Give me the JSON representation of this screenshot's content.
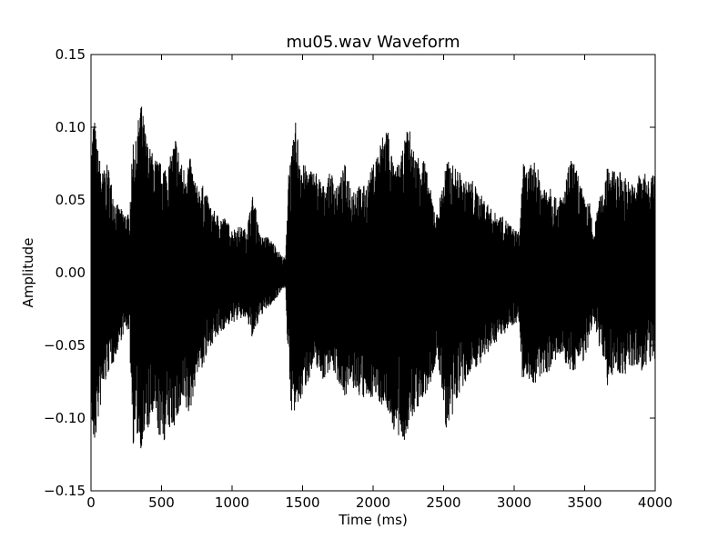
{
  "chart_data": {
    "type": "line",
    "title": "mu05.wav Waveform",
    "xlabel": "Time (ms)",
    "ylabel": "Amplitude",
    "xlim": [
      0,
      4000
    ],
    "ylim": [
      -0.15,
      0.15
    ],
    "xticks": [
      0,
      500,
      1000,
      1500,
      2000,
      2500,
      3000,
      3500,
      4000
    ],
    "xtick_labels": [
      "0",
      "500",
      "1000",
      "1500",
      "2000",
      "2500",
      "3000",
      "3500",
      "4000"
    ],
    "yticks": [
      0.15,
      0.1,
      0.05,
      0.0,
      -0.05,
      -0.1,
      -0.15
    ],
    "ytick_labels": [
      "0.15",
      "0.10",
      "0.05",
      "0.00",
      "−0.05",
      "−0.10",
      "−0.15"
    ],
    "grid": false,
    "line_color": "#000000",
    "series": [
      {
        "kind": "waveform_envelope",
        "x": [
          0,
          20,
          40,
          80,
          120,
          170,
          200,
          240,
          270,
          300,
          320,
          350,
          400,
          450,
          500,
          550,
          600,
          650,
          700,
          750,
          800,
          850,
          900,
          950,
          1000,
          1050,
          1100,
          1150,
          1200,
          1250,
          1300,
          1350,
          1380,
          1400,
          1420,
          1450,
          1500,
          1550,
          1600,
          1650,
          1700,
          1750,
          1800,
          1850,
          1900,
          1950,
          2000,
          2050,
          2100,
          2150,
          2200,
          2250,
          2300,
          2350,
          2400,
          2450,
          2480,
          2520,
          2550,
          2600,
          2650,
          2700,
          2750,
          2800,
          2850,
          2900,
          2950,
          3000,
          3040,
          3060,
          3080,
          3150,
          3200,
          3250,
          3300,
          3350,
          3400,
          3450,
          3500,
          3540,
          3560,
          3600,
          3640,
          3660,
          3700,
          3750,
          3800,
          3850,
          3900,
          3950,
          4000
        ],
        "upper": [
          0.08,
          0.112,
          0.09,
          0.07,
          0.075,
          0.05,
          0.045,
          0.042,
          0.04,
          0.095,
          0.09,
          0.121,
          0.09,
          0.08,
          0.075,
          0.075,
          0.095,
          0.072,
          0.08,
          0.06,
          0.06,
          0.045,
          0.04,
          0.038,
          0.03,
          0.032,
          0.03,
          0.055,
          0.025,
          0.025,
          0.02,
          0.012,
          0.01,
          0.075,
          0.08,
          0.104,
          0.075,
          0.072,
          0.07,
          0.06,
          0.07,
          0.06,
          0.075,
          0.06,
          0.06,
          0.06,
          0.075,
          0.09,
          0.105,
          0.07,
          0.08,
          0.103,
          0.08,
          0.085,
          0.06,
          0.04,
          0.055,
          0.078,
          0.075,
          0.072,
          0.063,
          0.065,
          0.055,
          0.05,
          0.042,
          0.04,
          0.036,
          0.03,
          0.028,
          0.08,
          0.07,
          0.078,
          0.06,
          0.065,
          0.05,
          0.055,
          0.08,
          0.07,
          0.05,
          0.048,
          0.025,
          0.05,
          0.06,
          0.08,
          0.07,
          0.07,
          0.065,
          0.06,
          0.072,
          0.065,
          0.07
        ],
        "lower": [
          -0.1,
          -0.125,
          -0.11,
          -0.085,
          -0.07,
          -0.06,
          -0.05,
          -0.04,
          -0.04,
          -0.12,
          -0.11,
          -0.122,
          -0.11,
          -0.1,
          -0.12,
          -0.11,
          -0.105,
          -0.095,
          -0.1,
          -0.07,
          -0.065,
          -0.05,
          -0.045,
          -0.038,
          -0.035,
          -0.032,
          -0.032,
          -0.047,
          -0.03,
          -0.025,
          -0.02,
          -0.012,
          -0.01,
          -0.07,
          -0.095,
          -0.1,
          -0.085,
          -0.072,
          -0.065,
          -0.075,
          -0.065,
          -0.075,
          -0.085,
          -0.08,
          -0.085,
          -0.09,
          -0.085,
          -0.09,
          -0.095,
          -0.11,
          -0.12,
          -0.11,
          -0.095,
          -0.09,
          -0.08,
          -0.06,
          -0.075,
          -0.11,
          -0.11,
          -0.085,
          -0.08,
          -0.065,
          -0.065,
          -0.06,
          -0.05,
          -0.045,
          -0.04,
          -0.035,
          -0.035,
          -0.085,
          -0.07,
          -0.08,
          -0.07,
          -0.068,
          -0.06,
          -0.06,
          -0.07,
          -0.065,
          -0.06,
          -0.05,
          -0.03,
          -0.05,
          -0.06,
          -0.078,
          -0.07,
          -0.07,
          -0.07,
          -0.065,
          -0.068,
          -0.065,
          -0.06
        ]
      }
    ]
  }
}
